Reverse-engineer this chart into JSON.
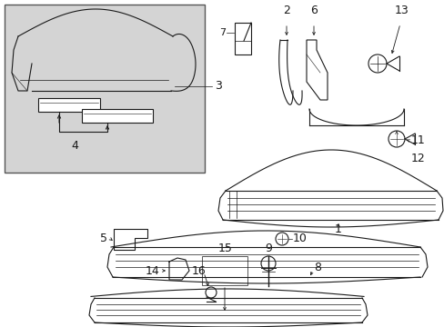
{
  "bg_color": "#ffffff",
  "inset_bg": "#d8d8d8",
  "line_color": "#1a1a1a",
  "fig_w": 4.89,
  "fig_h": 3.6,
  "dpi": 100
}
